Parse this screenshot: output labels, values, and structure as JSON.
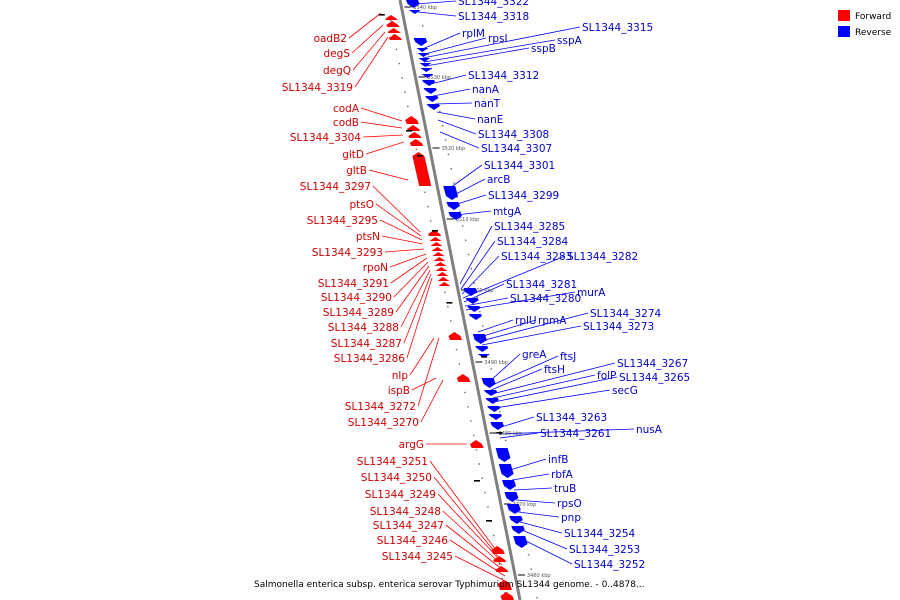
{
  "caption": "Salmonella enterica subsp. enterica serovar Typhimurium SL1344 genome. - 0..4878...",
  "colors": {
    "forward": "#ff0000",
    "reverse": "#0000ff",
    "backbone": "#808080",
    "label_forward": "#cc0000",
    "label_reverse": "#0000cc"
  },
  "legend": [
    {
      "name": "Forward",
      "color": "#ff0000"
    },
    {
      "name": "Reverse",
      "color": "#0000ff"
    }
  ],
  "ticks": [
    "3540 kbp",
    "3530 kbp",
    "3520 kbp",
    "3510 kbp",
    "3500 kbp",
    "3490 kbp",
    "3480 kbp",
    "3470 kbp",
    "3460 kbp"
  ],
  "forward_labels": [
    "oadB2",
    "degS",
    "degQ",
    "SL1344_3319",
    "codA",
    "codB",
    "SL1344_3304",
    "gltD",
    "gltB",
    "SL1344_3297",
    "ptsO",
    "SL1344_3295",
    "ptsN",
    "SL1344_3293",
    "rpoN",
    "SL1344_3291",
    "SL1344_3290",
    "SL1344_3289",
    "SL1344_3288",
    "SL1344_3287",
    "SL1344_3286",
    "nlp",
    "ispB",
    "SL1344_3272",
    "SL1344_3270",
    "argG",
    "SL1344_3251",
    "SL1344_3250",
    "SL1344_3249",
    "SL1344_3248",
    "SL1344_3247",
    "SL1344_3246",
    "SL1344_3245"
  ],
  "reverse_labels": [
    "SL1344_3322",
    "SL1344_3318",
    "rplM",
    "rpsI",
    "SL1344_3315",
    "sspA",
    "sspB",
    "SL1344_3312",
    "nanA",
    "nanT",
    "nanE",
    "SL1344_3308",
    "SL1344_3307",
    "SL1344_3301",
    "arcB",
    "SL1344_3299",
    "mtgA",
    "SL1344_3285",
    "SL1344_3284",
    "SL1344_3283",
    "SL1344_3282",
    "SL1344_3281",
    "SL1344_3280",
    "murA",
    "rplU",
    "rpmA",
    "SL1344_3274",
    "SL1344_3273",
    "greA",
    "ftsJ",
    "ftsH",
    "SL1344_3267",
    "folP",
    "SL1344_3265",
    "secG",
    "SL1344_3263",
    "nusA",
    "SL1344_3261",
    "infB",
    "rbfA",
    "truB",
    "rpsO",
    "pnp",
    "SL1344_3254",
    "SL1344_3253",
    "SL1344_3252"
  ]
}
